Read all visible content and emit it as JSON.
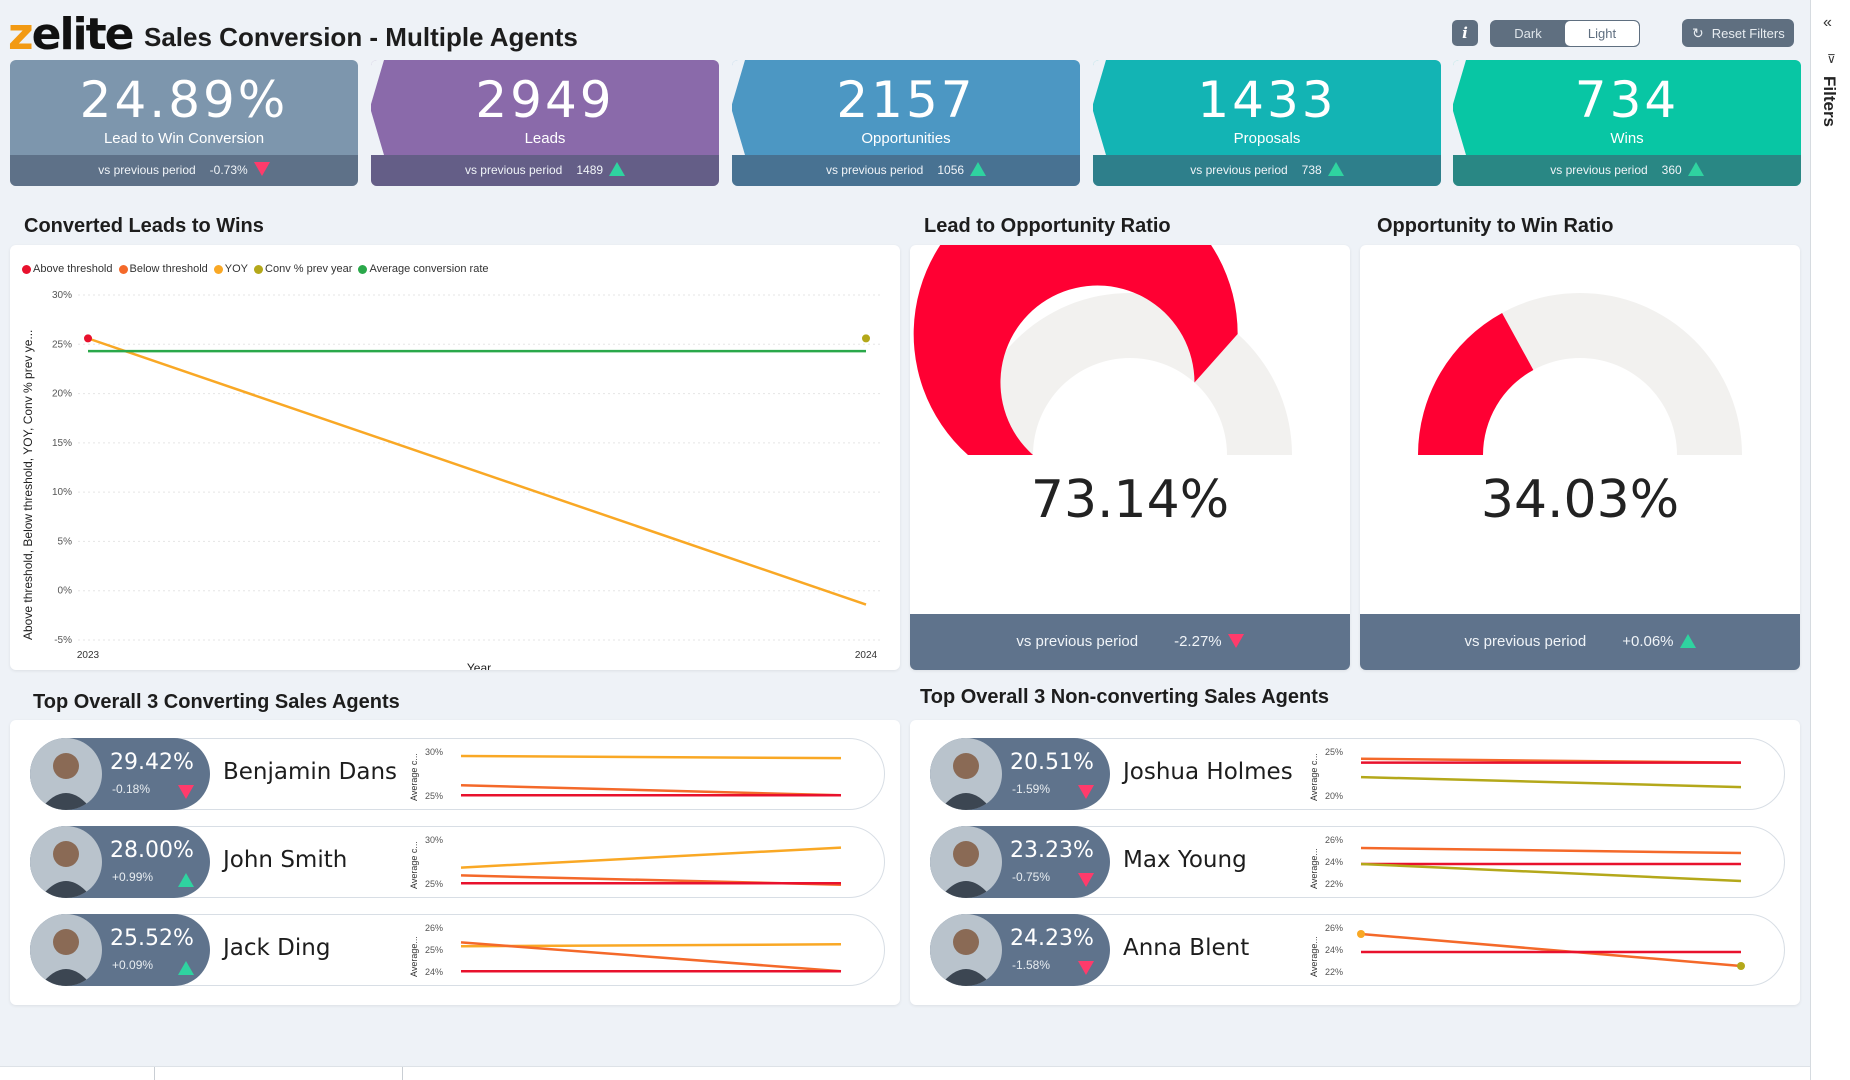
{
  "header": {
    "logo_text": "zelite",
    "title": "Sales Conversion - Multiple Agents",
    "info_label": "i",
    "theme_options": [
      "Dark",
      "Light"
    ],
    "theme_selected": "Light",
    "reset_label": "Reset Filters"
  },
  "filters_pane": {
    "label": "Filters"
  },
  "kpis": [
    {
      "value": "24.89%",
      "label": "Lead to Win Conversion",
      "vs_label": "vs previous period",
      "delta": "-0.73%",
      "direction": "down",
      "color": "#7d96ad"
    },
    {
      "value": "2949",
      "label": "Leads",
      "vs_label": "vs previous period",
      "delta": "1489",
      "direction": "up",
      "color": "#8a6aaa"
    },
    {
      "value": "2157",
      "label": "Opportunities",
      "vs_label": "vs previous period",
      "delta": "1056",
      "direction": "up",
      "color": "#4c97c3"
    },
    {
      "value": "1433",
      "label": "Proposals",
      "vs_label": "vs previous period",
      "delta": "738",
      "direction": "up",
      "color": "#13b4b4"
    },
    {
      "value": "734",
      "label": "Wins",
      "vs_label": "vs previous period",
      "delta": "360",
      "direction": "up",
      "color": "#08c6a4"
    }
  ],
  "sections": {
    "converted": "Converted Leads to Wins",
    "lead_opp": "Lead to Opportunity Ratio",
    "opp_win": "Opportunity to Win Ratio",
    "top_conv": "Top Overall 3 Converting Sales Agents",
    "top_nonconv": "Top Overall 3 Non-converting Sales Agents"
  },
  "chart_data": {
    "type": "line",
    "xlabel": "Year",
    "ylabel": "Above threshold, Below threshold, YOY, Conv % prev ye...",
    "x": [
      "2023",
      "2024"
    ],
    "yticks": [
      "30%",
      "25%",
      "20%",
      "15%",
      "10%",
      "5%",
      "0%",
      "-5%"
    ],
    "ylim": [
      -5,
      30
    ],
    "grid": true,
    "legend_position": "top-left",
    "legend": [
      {
        "name": "Above threshold",
        "color": "#e8112d"
      },
      {
        "name": "Below threshold",
        "color": "#f4692a"
      },
      {
        "name": "YOY",
        "color": "#f9a825"
      },
      {
        "name": "Conv % prev year",
        "color": "#b4a81a"
      },
      {
        "name": "Average conversion rate",
        "color": "#2aa84a"
      }
    ],
    "series": [
      {
        "name": "YOY",
        "values": [
          25.6,
          -1.4
        ]
      },
      {
        "name": "Average conversion rate",
        "values": [
          24.3,
          24.3
        ]
      },
      {
        "name": "Above threshold",
        "values": [
          25.6,
          null
        ]
      },
      {
        "name": "Conv % prev year",
        "values": [
          null,
          25.6
        ]
      }
    ]
  },
  "gauges": [
    {
      "value_text": "73.14%",
      "fraction": 0.7314,
      "vs_label": "vs previous period",
      "delta": "-2.27%",
      "direction": "down"
    },
    {
      "value_text": "34.03%",
      "fraction": 0.3403,
      "vs_label": "vs previous period",
      "delta": "+0.06%",
      "direction": "up"
    }
  ],
  "colors": {
    "gauge_fill": "#ff0033",
    "gauge_track": "#f2f1ef",
    "up": "#2fd3a0",
    "down": "#ff3b6b",
    "dark_slate": "#5f738c"
  },
  "converting_agents": [
    {
      "pct": "29.42%",
      "delta": "-0.18%",
      "direction": "down",
      "name": "Benjamin Dans",
      "spark_axis": "Average c...",
      "spark_ticks": [
        "30%",
        "25%"
      ],
      "spark": {
        "ylim": [
          24,
          31
        ],
        "lines": [
          {
            "color": "#f9a825",
            "values": [
              30.3,
              30.0
            ]
          },
          {
            "color": "#f4692a",
            "values": [
              26.2,
              24.8
            ]
          },
          {
            "color": "#e8112d",
            "values": [
              24.8,
              24.8
            ]
          }
        ]
      }
    },
    {
      "pct": "28.00%",
      "delta": "+0.99%",
      "direction": "up",
      "name": "John Smith",
      "spark_axis": "Average c...",
      "spark_ticks": [
        "30%",
        "25%"
      ],
      "spark": {
        "ylim": [
          24,
          31
        ],
        "lines": [
          {
            "color": "#f9a825",
            "values": [
              27.0,
              29.8
            ]
          },
          {
            "color": "#f4692a",
            "values": [
              25.9,
              24.6
            ]
          },
          {
            "color": "#e8112d",
            "values": [
              24.8,
              24.8
            ]
          }
        ]
      }
    },
    {
      "pct": "25.52%",
      "delta": "+0.09%",
      "direction": "up",
      "name": "Jack Ding",
      "spark_axis": "Average...",
      "spark_ticks": [
        "26%",
        "25%",
        "24%"
      ],
      "spark": {
        "ylim": [
          23.8,
          26.4
        ],
        "lines": [
          {
            "color": "#f9a825",
            "values": [
              25.4,
              25.5
            ]
          },
          {
            "color": "#f4692a",
            "values": [
              25.6,
              24.1
            ]
          },
          {
            "color": "#e8112d",
            "values": [
              24.1,
              24.1
            ]
          }
        ]
      }
    }
  ],
  "nonconverting_agents": [
    {
      "pct": "20.51%",
      "delta": "-1.59%",
      "direction": "down",
      "name": "Joshua Holmes",
      "spark_axis": "Average c...",
      "spark_ticks": [
        "25%",
        "20%"
      ],
      "spark": {
        "ylim": [
          18,
          27
        ],
        "lines": [
          {
            "color": "#f4692a",
            "values": [
              25.6,
              24.9
            ]
          },
          {
            "color": "#e8112d",
            "values": [
              24.9,
              24.9
            ]
          },
          {
            "color": "#b4a81a",
            "values": [
              22.3,
              20.5
            ]
          }
        ]
      }
    },
    {
      "pct": "23.23%",
      "delta": "-0.75%",
      "direction": "down",
      "name": "Max Young",
      "spark_axis": "Average...",
      "spark_ticks": [
        "26%",
        "24%",
        "22%"
      ],
      "spark": {
        "ylim": [
          21.5,
          26.5
        ],
        "lines": [
          {
            "color": "#f4692a",
            "values": [
              25.6,
              25.1
            ]
          },
          {
            "color": "#e8112d",
            "values": [
              24.0,
              24.0
            ]
          },
          {
            "color": "#b4a81a",
            "values": [
              24.0,
              22.3
            ]
          }
        ]
      }
    },
    {
      "pct": "24.23%",
      "delta": "-1.58%",
      "direction": "down",
      "name": "Anna Blent",
      "spark_axis": "Average...",
      "spark_ticks": [
        "26%",
        "24%",
        "22%"
      ],
      "spark": {
        "ylim": [
          21.5,
          26.5
        ],
        "lines": [
          {
            "color": "#f4692a",
            "values": [
              25.8,
              22.6
            ]
          },
          {
            "color": "#e8112d",
            "values": [
              24.0,
              24.0
            ]
          }
        ],
        "dots": [
          {
            "color": "#f9a825",
            "index": 0,
            "value": 25.8
          },
          {
            "color": "#b4a81a",
            "index": 1,
            "value": 22.6
          }
        ]
      }
    }
  ]
}
